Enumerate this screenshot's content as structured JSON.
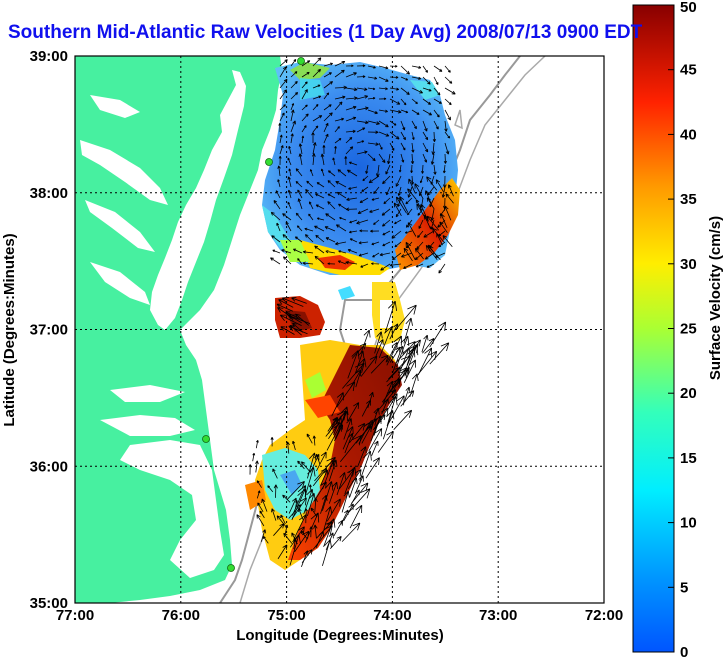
{
  "title": "Southern Mid-Atlantic Raw Velocities (1 Day Avg) 2008/07/13 0900 EDT",
  "axes": {
    "xlabel": "Longitude (Degrees:Minutes)",
    "ylabel": "Latitude (Degrees:Minutes)",
    "x_ticks": [
      "77:00",
      "76:00",
      "75:00",
      "74:00",
      "73:00",
      "72:00"
    ],
    "y_ticks": [
      "39:00",
      "38:00",
      "37:00",
      "36:00",
      "35:00"
    ],
    "x_range_deg_west": [
      77,
      72
    ],
    "y_range_deg_north": [
      35,
      39
    ],
    "grid": "dotted"
  },
  "colorbar": {
    "label": "Surface Velocity (cm/s)",
    "ticks": [
      "0",
      "5",
      "10",
      "15",
      "20",
      "25",
      "30",
      "35",
      "40",
      "45",
      "50"
    ],
    "range": [
      0,
      50
    ],
    "colormap": "jet"
  },
  "colors": {
    "land": "#47f0a0",
    "ocean": "#ffffff",
    "title": "#1010ee",
    "stations": "#33dd33",
    "bathymetry": "#999999"
  },
  "stations": [
    "station-1",
    "station-2",
    "station-3",
    "station-4"
  ],
  "velocity_regions": [
    {
      "name": "north-low-speed",
      "lat_range": [
        37.5,
        39.0
      ],
      "lon_range": [
        -75.2,
        -73.5
      ],
      "speed_cm_s": 5
    },
    {
      "name": "northeast-jet",
      "lat_range": [
        37.6,
        38.1
      ],
      "lon_range": [
        -74.3,
        -73.6
      ],
      "speed_cm_s": 42
    },
    {
      "name": "mouth-bay-patch",
      "lat_range": [
        36.8,
        37.2
      ],
      "lon_range": [
        -75.2,
        -74.9
      ],
      "speed_cm_s": 45
    },
    {
      "name": "south-strong-jet",
      "lat_range": [
        35.3,
        36.9
      ],
      "lon_range": [
        -75.1,
        -74.0
      ],
      "speed_cm_s": 48
    },
    {
      "name": "south-nearshore",
      "lat_range": [
        35.6,
        36.4
      ],
      "lon_range": [
        -75.5,
        -74.8
      ],
      "speed_cm_s": 15
    }
  ]
}
